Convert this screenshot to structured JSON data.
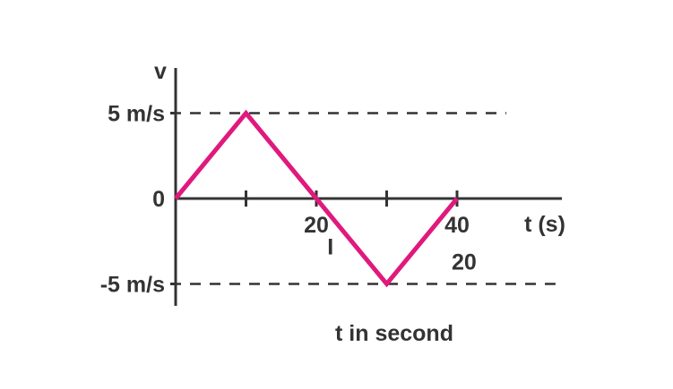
{
  "chart_data": {
    "type": "line",
    "title": "",
    "ylabel": "v",
    "xlabel": "t (s)",
    "caption": "t in second",
    "x": [
      0,
      10,
      20,
      30,
      40
    ],
    "series": [
      {
        "values": [
          0,
          5,
          0,
          -5,
          0
        ]
      }
    ],
    "xlim": [
      0,
      55
    ],
    "ylim": [
      -6,
      7
    ],
    "x_ticks": [
      10,
      20,
      30,
      40
    ],
    "x_tick_labels": [
      {
        "x": 20,
        "label": "20"
      },
      {
        "x": 40,
        "label": "40"
      }
    ],
    "y_tick_labels": [
      {
        "y": 5,
        "label": "5 m/s"
      },
      {
        "y": 0,
        "label": "0"
      },
      {
        "y": -5,
        "label": "-5 m/s"
      }
    ],
    "reference_lines": [
      {
        "y": 5,
        "x_end": 47
      },
      {
        "y": -5,
        "x_end": 54
      }
    ],
    "annotations": [
      {
        "text": "I",
        "x": 22,
        "y": -2.8
      },
      {
        "text": "20",
        "x": 41,
        "y": -3.7
      }
    ],
    "grid": false,
    "legend": "none",
    "line_color": "#e0197d",
    "axis_color": "#333333"
  }
}
